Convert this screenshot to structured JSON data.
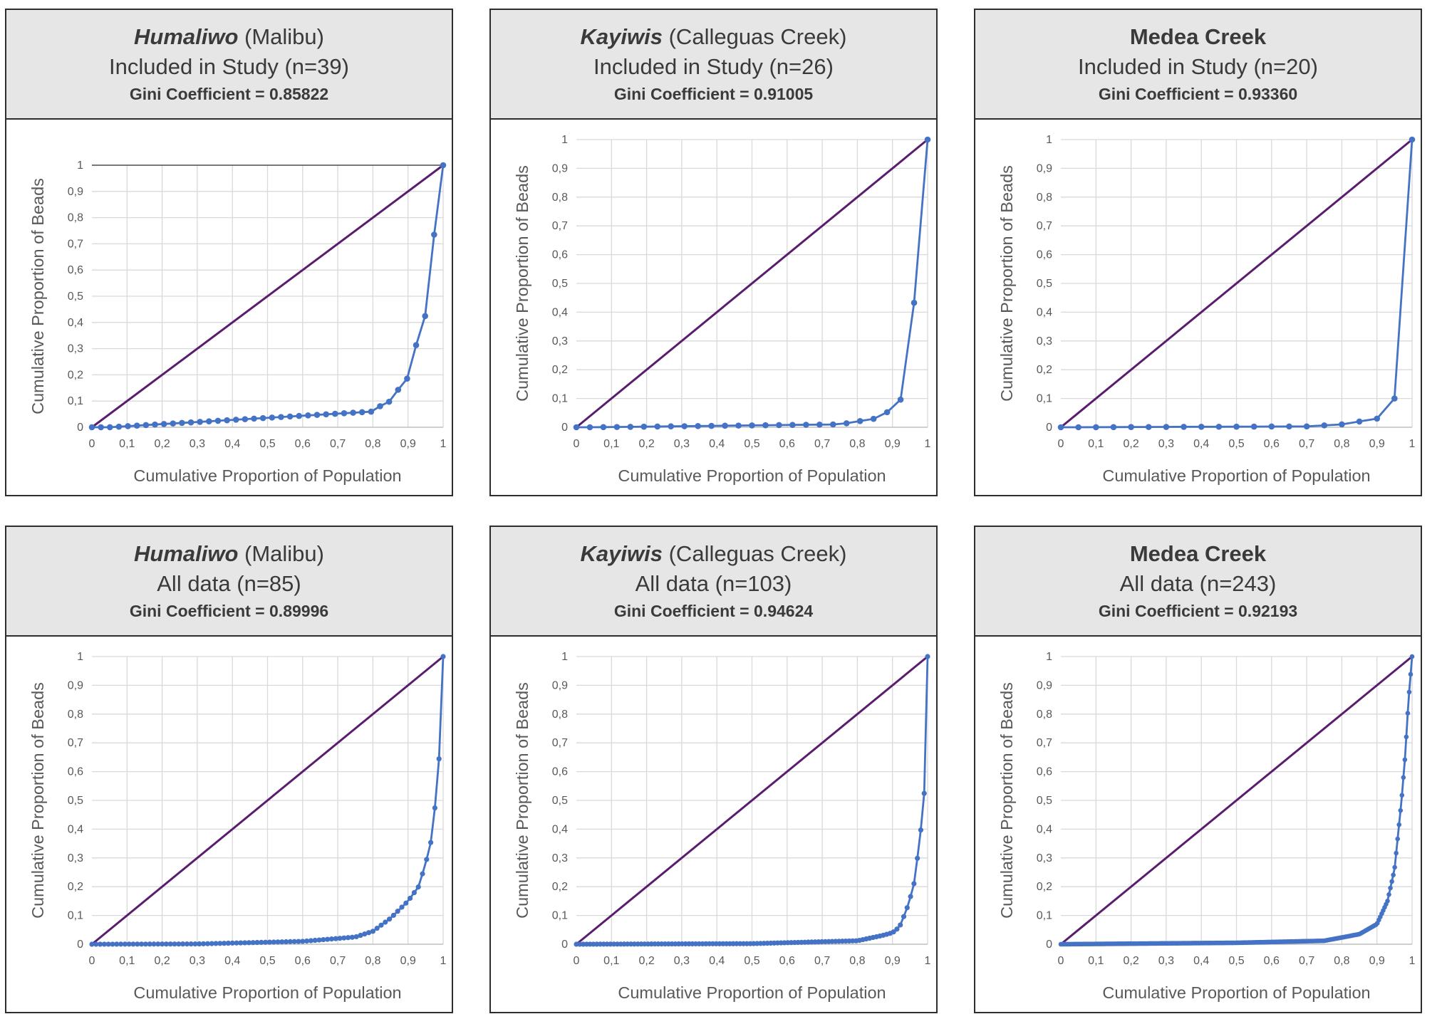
{
  "panels": [
    {
      "site_name": "Humaliwo",
      "site_qualifier": " (Malibu)",
      "site_italic": true,
      "subset": "Included in Study (n=39)",
      "gini": "Gini Coefficient = 0.85822"
    },
    {
      "site_name": "Kayiwis",
      "site_qualifier": " (Calleguas Creek)",
      "site_italic": true,
      "subset": "Included in Study (n=26)",
      "gini": "Gini Coefficient = 0.91005"
    },
    {
      "site_name": "Medea Creek",
      "site_qualifier": "",
      "site_italic": false,
      "subset": "Included in Study (n=20)",
      "gini": "Gini Coefficient = 0.93360"
    },
    {
      "site_name": "Humaliwo",
      "site_qualifier": " (Malibu)",
      "site_italic": true,
      "subset": "All data (n=85)",
      "gini": "Gini Coefficient = 0.89996"
    },
    {
      "site_name": "Kayiwis",
      "site_qualifier": " (Calleguas Creek)",
      "site_italic": true,
      "subset": "All data (n=103)",
      "gini": "Gini Coefficient = 0.94624"
    },
    {
      "site_name": "Medea Creek",
      "site_qualifier": "",
      "site_italic": false,
      "subset": "All data (n=243)",
      "gini": "Gini Coefficient = 0.92193"
    }
  ],
  "colors": {
    "lorenz": "#4472c4",
    "equality": "#5a1d6e",
    "grid": "#d9d9d9",
    "header_bg": "#e7e6e6",
    "border": "#2e2e2e"
  },
  "chart_data": [
    {
      "type": "line",
      "xlabel": "Cumulative Proportion of Population",
      "ylabel": "Cumulative Proportion of Beads",
      "xlim": [
        0,
        1
      ],
      "ylim": [
        0,
        1
      ],
      "x_ticks": [
        "0",
        "0,1",
        "0,2",
        "0,3",
        "0,4",
        "0,5",
        "0,6",
        "0,7",
        "0,8",
        "0,9",
        "1"
      ],
      "y_ticks": [
        "0",
        "0,1",
        "0,2",
        "0,3",
        "0,4",
        "0,5",
        "0,6",
        "0,7",
        "0,8",
        "0,9",
        "1"
      ],
      "grid": true,
      "legend": "none",
      "n": 39,
      "series": [
        {
          "kind": "equality",
          "x": [
            0,
            1
          ],
          "y": [
            0,
            1
          ]
        },
        {
          "kind": "lorenz",
          "x": [
            0,
            0.05,
            0.8,
            0.82,
            0.85,
            0.87,
            0.9,
            0.92,
            0.95,
            0.97,
            1
          ],
          "y": [
            0,
            0,
            0.06,
            0.08,
            0.1,
            0.14,
            0.19,
            0.3,
            0.43,
            0.69,
            1
          ]
        }
      ]
    },
    {
      "type": "line",
      "xlabel": "Cumulative Proportion of Population",
      "ylabel": "Cumulative Proportion of Beads",
      "xlim": [
        0,
        1
      ],
      "ylim": [
        0,
        1
      ],
      "x_ticks": [
        "0",
        "0,1",
        "0,2",
        "0,3",
        "0,4",
        "0,5",
        "0,6",
        "0,7",
        "0,8",
        "0,9",
        "1"
      ],
      "y_ticks": [
        "0",
        "0,1",
        "0,2",
        "0,3",
        "0,4",
        "0,5",
        "0,6",
        "0,7",
        "0,8",
        "0,9",
        "1"
      ],
      "grid": true,
      "legend": "none",
      "n": 26,
      "series": [
        {
          "kind": "equality",
          "x": [
            0,
            1
          ],
          "y": [
            0,
            1
          ]
        },
        {
          "kind": "lorenz",
          "x": [
            0,
            0.05,
            0.75,
            0.85,
            0.88,
            0.92,
            0.96,
            1
          ],
          "y": [
            0,
            0,
            0.01,
            0.03,
            0.05,
            0.07,
            0.41,
            1
          ]
        }
      ]
    },
    {
      "type": "line",
      "xlabel": "Cumulative Proportion of Population",
      "ylabel": "Cumulative Proportion of Beads",
      "xlim": [
        0,
        1
      ],
      "ylim": [
        0,
        1
      ],
      "x_ticks": [
        "0",
        "0,1",
        "0,2",
        "0,3",
        "0,4",
        "0,5",
        "0,6",
        "0,7",
        "0,8",
        "0,9",
        "1"
      ],
      "y_ticks": [
        "0",
        "0,1",
        "0,2",
        "0,3",
        "0,4",
        "0,5",
        "0,6",
        "0,7",
        "0,8",
        "0,9",
        "1"
      ],
      "grid": true,
      "legend": "none",
      "n": 20,
      "series": [
        {
          "kind": "equality",
          "x": [
            0,
            1
          ],
          "y": [
            0,
            1
          ]
        },
        {
          "kind": "lorenz",
          "x": [
            0,
            0.05,
            0.7,
            0.8,
            0.85,
            0.9,
            0.95,
            1
          ],
          "y": [
            0,
            0,
            0.003,
            0.01,
            0.02,
            0.03,
            0.1,
            1
          ]
        }
      ]
    },
    {
      "type": "line",
      "xlabel": "Cumulative Proportion of Population",
      "ylabel": "Cumulative Proportion of Beads",
      "xlim": [
        0,
        1
      ],
      "ylim": [
        0,
        1
      ],
      "x_ticks": [
        "0",
        "0,1",
        "0,2",
        "0,3",
        "0,4",
        "0,5",
        "0,6",
        "0,7",
        "0,8",
        "0,9",
        "1"
      ],
      "y_ticks": [
        "0",
        "0,1",
        "0,2",
        "0,3",
        "0,4",
        "0,5",
        "0,6",
        "0,7",
        "0,8",
        "0,9",
        "1"
      ],
      "grid": true,
      "legend": "none",
      "n": 85,
      "series": [
        {
          "kind": "equality",
          "x": [
            0,
            1
          ],
          "y": [
            0,
            1
          ]
        },
        {
          "kind": "lorenz",
          "x": [
            0,
            0.3,
            0.6,
            0.75,
            0.8,
            0.85,
            0.9,
            0.93,
            0.95,
            0.97,
            0.99,
            1
          ],
          "y": [
            0,
            0.001,
            0.01,
            0.025,
            0.045,
            0.09,
            0.15,
            0.2,
            0.28,
            0.38,
            0.67,
            1
          ]
        }
      ]
    },
    {
      "type": "line",
      "xlabel": "Cumulative Proportion of Population",
      "ylabel": "Cumulative Proportion of Beads",
      "xlim": [
        0,
        1
      ],
      "ylim": [
        0,
        1
      ],
      "x_ticks": [
        "0",
        "0,1",
        "0,2",
        "0,3",
        "0,4",
        "0,5",
        "0,6",
        "0,7",
        "0,8",
        "0,9",
        "1"
      ],
      "y_ticks": [
        "0",
        "0,1",
        "0,2",
        "0,3",
        "0,4",
        "0,5",
        "0,6",
        "0,7",
        "0,8",
        "0,9",
        "1"
      ],
      "grid": true,
      "legend": "none",
      "n": 103,
      "series": [
        {
          "kind": "equality",
          "x": [
            0,
            1
          ],
          "y": [
            0,
            1
          ]
        },
        {
          "kind": "lorenz",
          "x": [
            0,
            0.5,
            0.8,
            0.87,
            0.9,
            0.92,
            0.94,
            0.96,
            0.97,
            0.98,
            0.99,
            1
          ],
          "y": [
            0,
            0.002,
            0.012,
            0.03,
            0.04,
            0.06,
            0.12,
            0.2,
            0.29,
            0.39,
            0.51,
            1
          ]
        }
      ]
    },
    {
      "type": "line",
      "xlabel": "Cumulative Proportion of Population",
      "ylabel": "Cumulative Proportion of Beads",
      "xlim": [
        0,
        1
      ],
      "ylim": [
        0,
        1
      ],
      "x_ticks": [
        "0",
        "0,1",
        "0,2",
        "0,3",
        "0,4",
        "0,5",
        "0,6",
        "0,7",
        "0,8",
        "0,9",
        "1"
      ],
      "y_ticks": [
        "0",
        "0,1",
        "0,2",
        "0,3",
        "0,4",
        "0,5",
        "0,6",
        "0,7",
        "0,8",
        "0,9",
        "1"
      ],
      "grid": true,
      "legend": "none",
      "n": 243,
      "series": [
        {
          "kind": "equality",
          "x": [
            0,
            1
          ],
          "y": [
            0,
            1
          ]
        },
        {
          "kind": "lorenz",
          "x": [
            0,
            0.5,
            0.75,
            0.85,
            0.9,
            0.93,
            0.95,
            0.96,
            0.97,
            0.98,
            0.99,
            1
          ],
          "y": [
            0,
            0.005,
            0.012,
            0.035,
            0.07,
            0.15,
            0.26,
            0.38,
            0.5,
            0.65,
            0.85,
            1
          ]
        }
      ]
    }
  ]
}
